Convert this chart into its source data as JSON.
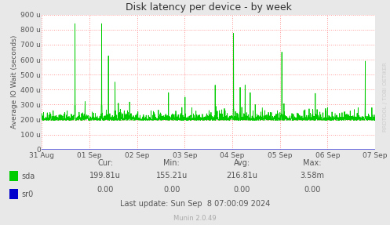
{
  "title": "Disk latency per device - by week",
  "ylabel": "Average IO Wait (seconds)",
  "bg_color": "#e8e8e8",
  "plot_bg_color": "#ffffff",
  "grid_color": "#ff9999",
  "line_color_sda": "#00cc00",
  "line_color_sr0": "#0000cc",
  "yticks": [
    0,
    100,
    200,
    300,
    400,
    500,
    600,
    700,
    800,
    900
  ],
  "ytick_labels": [
    "0",
    "100 u",
    "200 u",
    "300 u",
    "400 u",
    "500 u",
    "600 u",
    "700 u",
    "800 u",
    "900 u"
  ],
  "xtick_labels": [
    "31 Aug",
    "01 Sep",
    "02 Sep",
    "03 Sep",
    "04 Sep",
    "05 Sep",
    "06 Sep",
    "07 Sep"
  ],
  "legend": [
    {
      "label": "sda",
      "color": "#00cc00"
    },
    {
      "label": "sr0",
      "color": "#0000cc"
    }
  ],
  "stats_header": [
    "Cur:",
    "Min:",
    "Avg:",
    "Max:"
  ],
  "stats_sda": [
    "199.81u",
    "155.21u",
    "216.81u",
    "3.58m"
  ],
  "stats_sr0": [
    "0.00",
    "0.00",
    "0.00",
    "0.00"
  ],
  "last_update": "Last update: Sun Sep  8 07:00:09 2024",
  "munin_version": "Munin 2.0.49",
  "watermark": "RRDTOOL / TOBI OETIKER",
  "font_color": "#555555",
  "title_color": "#333333",
  "axis_arrow_color": "#aaaaaa"
}
